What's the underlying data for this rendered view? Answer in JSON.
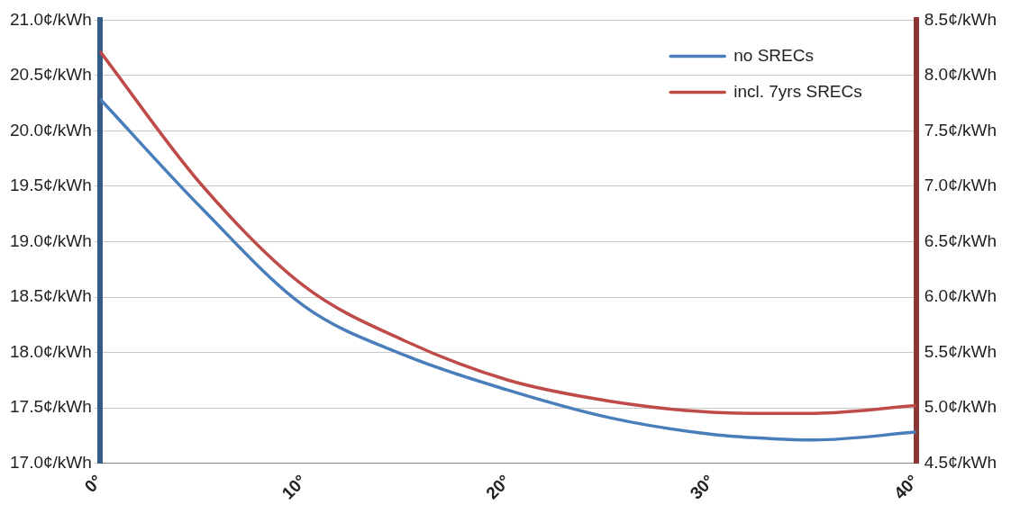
{
  "chart_data": {
    "type": "line",
    "x": [
      0,
      5,
      10,
      15,
      20,
      25,
      30,
      33,
      35,
      40
    ],
    "series": [
      {
        "name": "no SRECs",
        "color": "#4a7ebb",
        "values": [
          20.29,
          19.3,
          18.42,
          17.97,
          17.66,
          17.41,
          17.26,
          17.22,
          17.21,
          17.28
        ]
      },
      {
        "name": "incl. 7yrs SRECs",
        "color": "#be4b48",
        "axis": "y2",
        "values": [
          8.22,
          7.01,
          6.1,
          5.6,
          5.25,
          5.06,
          4.96,
          4.95,
          4.95,
          5.02
        ]
      }
    ],
    "xlim": [
      0,
      40
    ],
    "xticks": [
      {
        "value": 0,
        "label": "0°"
      },
      {
        "value": 10,
        "label": "10°"
      },
      {
        "value": 20,
        "label": "20°"
      },
      {
        "value": 30,
        "label": "30°"
      },
      {
        "value": 40,
        "label": "40°"
      }
    ],
    "ylim": [
      17,
      21
    ],
    "yticks": [
      {
        "value": 17,
        "label": "17.0¢/kWh"
      },
      {
        "value": 17.5,
        "label": "17.5¢/kWh"
      },
      {
        "value": 18,
        "label": "18.0¢/kWh"
      },
      {
        "value": 18.5,
        "label": "18.5¢/kWh"
      },
      {
        "value": 19,
        "label": "19.0¢/kWh"
      },
      {
        "value": 19.5,
        "label": "19.5¢/kWh"
      },
      {
        "value": 20,
        "label": "20.0¢/kWh"
      },
      {
        "value": 20.5,
        "label": "20.5¢/kWh"
      },
      {
        "value": 21,
        "label": "21.0¢/kWh"
      }
    ],
    "y2lim": [
      4.5,
      8.5
    ],
    "y2ticks": [
      {
        "value": 4.5,
        "label": "4.5¢/kWh"
      },
      {
        "value": 5,
        "label": "5.0¢/kWh"
      },
      {
        "value": 5.5,
        "label": "5.5¢/kWh"
      },
      {
        "value": 6,
        "label": "6.0¢/kWh"
      },
      {
        "value": 6.5,
        "label": "6.5¢/kWh"
      },
      {
        "value": 7,
        "label": "7.0¢/kWh"
      },
      {
        "value": 7.5,
        "label": "7.5¢/kWh"
      },
      {
        "value": 8,
        "label": "8.0¢/kWh"
      },
      {
        "value": 8.5,
        "label": "8.5¢/kWh"
      }
    ],
    "grid": "y",
    "legend": "top right",
    "marker": "none",
    "line_style": "solid"
  }
}
